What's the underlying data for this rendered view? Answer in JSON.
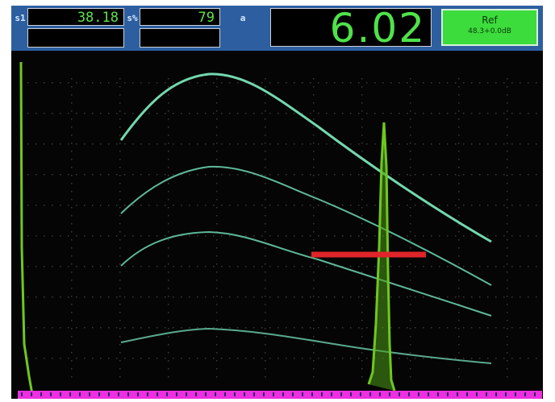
{
  "readings": {
    "r1": {
      "icon": "s1",
      "value": "38.18"
    },
    "r2": {
      "icon": "s%",
      "value": "79"
    },
    "r3": {
      "icon": "a"
    }
  },
  "main_value": "6.02",
  "reference": {
    "label": "Ref",
    "value": "48.3+0.0dB"
  },
  "colors": {
    "frame": "#2d5fa0",
    "text": "#5fe24a",
    "curve": "#68c8a8",
    "gate": "#e0252a",
    "signal": "#6ec81e",
    "baseline": "#ee2ee0"
  }
}
